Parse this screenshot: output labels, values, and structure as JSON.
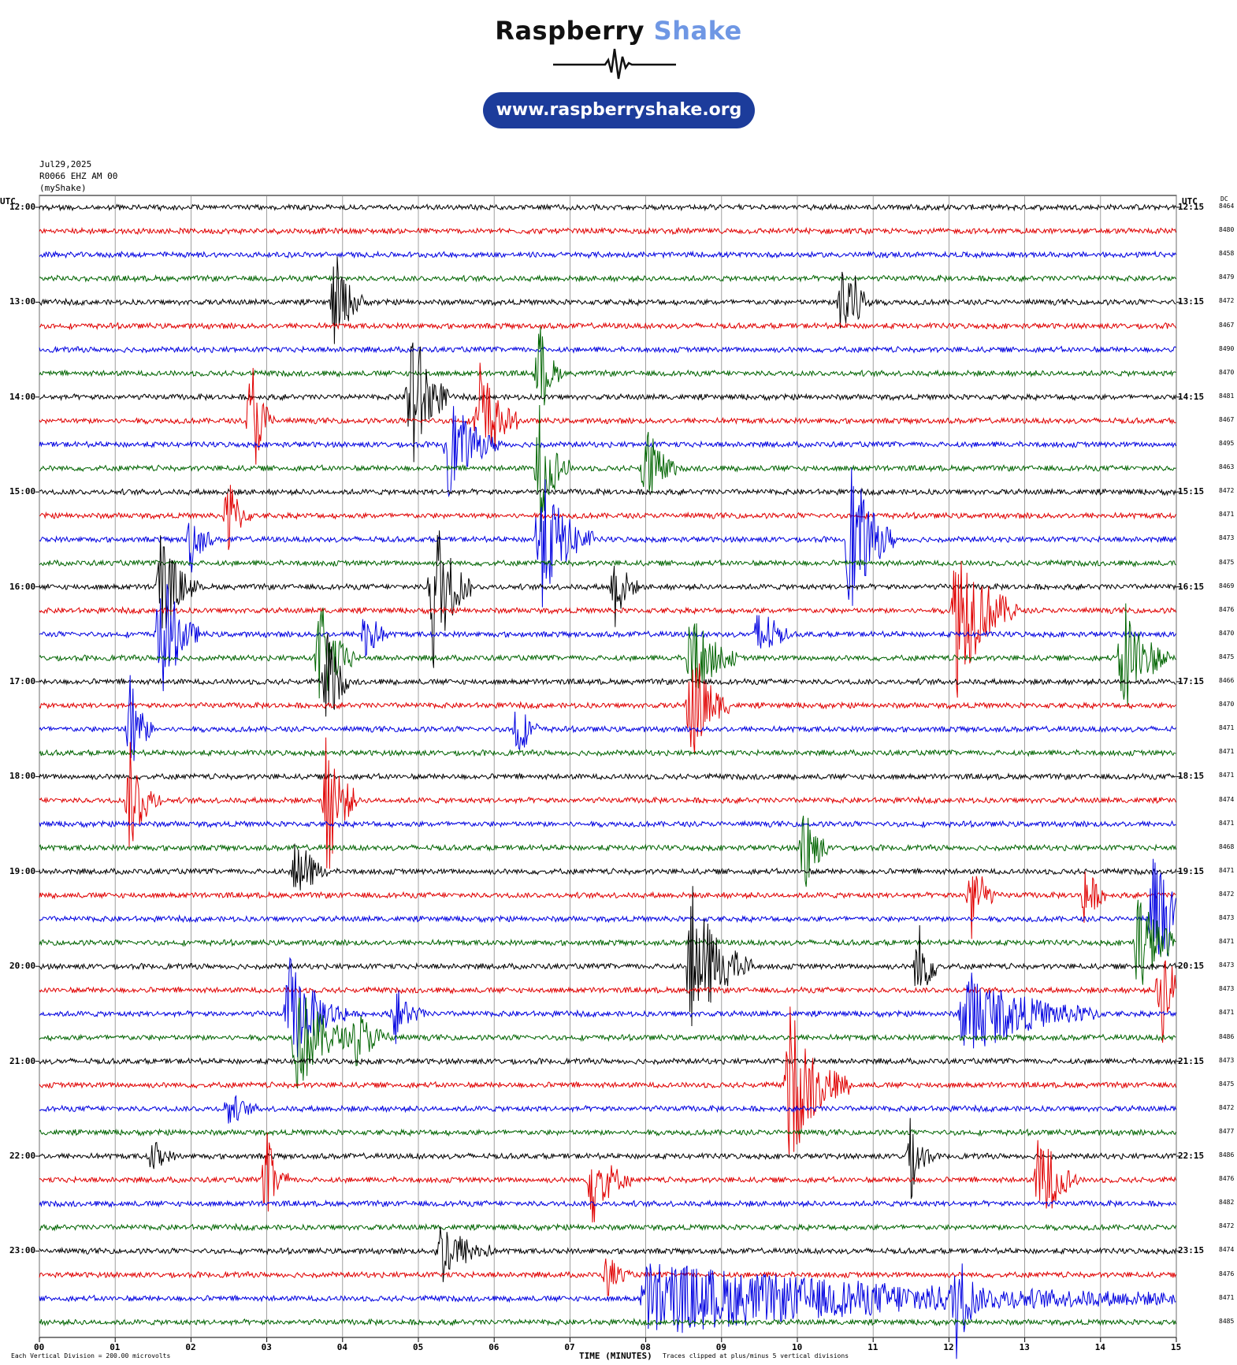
{
  "branding": {
    "brand_main": "Raspberry",
    "brand_accent": "Shake",
    "website": "www.raspberryshake.org",
    "accent_color": "#6f97e4",
    "pill_color": "#1c3c9b"
  },
  "header": {
    "date": "Jul29,2025",
    "station": "R0066 EHZ AM 00",
    "network": "(myShake)"
  },
  "chart_data": {
    "type": "line",
    "subtype": "helicorder",
    "left_axis_title": "UTC",
    "right_axis_title": "UTC",
    "dc_header": "DC",
    "xlabel": "TIME (MINUTES)",
    "xticks": [
      "00",
      "01",
      "02",
      "03",
      "04",
      "05",
      "06",
      "07",
      "08",
      "09",
      "10",
      "11",
      "12",
      "13",
      "14",
      "15"
    ],
    "xlim": [
      0,
      15
    ],
    "grid": true,
    "trace_colors": [
      "#000000",
      "#e00000",
      "#0000e0",
      "#006400"
    ],
    "hour_labels_left": [
      "12:00",
      "13:00",
      "14:00",
      "15:00",
      "16:00",
      "17:00",
      "18:00",
      "19:00",
      "20:00",
      "21:00",
      "22:00",
      "23:00"
    ],
    "hour_labels_right": [
      "12:15",
      "13:15",
      "14:15",
      "15:15",
      "16:15",
      "17:15",
      "18:15",
      "19:15",
      "20:15",
      "21:15",
      "22:15",
      "23:15"
    ],
    "dc_values": [
      "8464",
      "8480",
      "8458",
      "8479",
      "8472",
      "8467",
      "8490",
      "8470",
      "8481",
      "8467",
      "8495",
      "8463",
      "8472",
      "8471",
      "8473",
      "8475",
      "8469",
      "8476",
      "8470",
      "8475",
      "8466",
      "8470",
      "8471",
      "8471",
      "8471",
      "8474",
      "8471",
      "8468",
      "8471",
      "8472",
      "8473",
      "8471",
      "8473",
      "8473",
      "8471",
      "8486",
      "8473",
      "8475",
      "8472",
      "8477",
      "8486",
      "8476",
      "8482",
      "8472",
      "8474",
      "8476",
      "8471",
      "8485"
    ],
    "events": [
      {
        "line": 4,
        "minute": 3.9,
        "amp": 2.2,
        "dur": 0.4
      },
      {
        "line": 4,
        "minute": 10.6,
        "amp": 3.0,
        "dur": 0.4
      },
      {
        "line": 7,
        "minute": 6.6,
        "amp": 2.2,
        "dur": 0.3
      },
      {
        "line": 8,
        "minute": 4.9,
        "amp": 4.0,
        "dur": 0.5
      },
      {
        "line": 9,
        "minute": 2.8,
        "amp": 3.0,
        "dur": 0.3
      },
      {
        "line": 9,
        "minute": 5.8,
        "amp": 3.0,
        "dur": 0.5
      },
      {
        "line": 10,
        "minute": 5.4,
        "amp": 2.2,
        "dur": 0.7
      },
      {
        "line": 11,
        "minute": 6.6,
        "amp": 2.8,
        "dur": 0.4
      },
      {
        "line": 11,
        "minute": 8.0,
        "amp": 2.2,
        "dur": 0.4
      },
      {
        "line": 13,
        "minute": 2.5,
        "amp": 1.8,
        "dur": 0.3
      },
      {
        "line": 14,
        "minute": 2.0,
        "amp": 1.5,
        "dur": 0.3
      },
      {
        "line": 14,
        "minute": 6.6,
        "amp": 3.2,
        "dur": 0.7
      },
      {
        "line": 14,
        "minute": 10.7,
        "amp": 3.6,
        "dur": 0.6
      },
      {
        "line": 16,
        "minute": 1.6,
        "amp": 2.5,
        "dur": 0.5
      },
      {
        "line": 16,
        "minute": 5.2,
        "amp": 4.0,
        "dur": 0.5
      },
      {
        "line": 16,
        "minute": 7.6,
        "amp": 1.8,
        "dur": 0.3
      },
      {
        "line": 17,
        "minute": 12.1,
        "amp": 3.8,
        "dur": 0.8
      },
      {
        "line": 18,
        "minute": 1.6,
        "amp": 3.2,
        "dur": 0.5
      },
      {
        "line": 18,
        "minute": 4.3,
        "amp": 1.5,
        "dur": 0.3
      },
      {
        "line": 18,
        "minute": 9.5,
        "amp": 1.6,
        "dur": 0.4
      },
      {
        "line": 19,
        "minute": 3.7,
        "amp": 2.5,
        "dur": 0.5
      },
      {
        "line": 19,
        "minute": 8.6,
        "amp": 2.2,
        "dur": 0.6
      },
      {
        "line": 19,
        "minute": 14.3,
        "amp": 3.0,
        "dur": 0.6
      },
      {
        "line": 20,
        "minute": 3.8,
        "amp": 2.5,
        "dur": 0.3
      },
      {
        "line": 21,
        "minute": 8.6,
        "amp": 3.0,
        "dur": 0.5
      },
      {
        "line": 22,
        "minute": 1.2,
        "amp": 2.5,
        "dur": 0.3
      },
      {
        "line": 22,
        "minute": 6.3,
        "amp": 1.5,
        "dur": 0.3
      },
      {
        "line": 25,
        "minute": 1.2,
        "amp": 2.5,
        "dur": 0.4
      },
      {
        "line": 25,
        "minute": 3.8,
        "amp": 3.5,
        "dur": 0.4
      },
      {
        "line": 27,
        "minute": 10.1,
        "amp": 2.5,
        "dur": 0.3
      },
      {
        "line": 28,
        "minute": 3.4,
        "amp": 1.8,
        "dur": 0.4
      },
      {
        "line": 29,
        "minute": 12.3,
        "amp": 2.2,
        "dur": 0.3
      },
      {
        "line": 29,
        "minute": 13.8,
        "amp": 1.5,
        "dur": 0.3
      },
      {
        "line": 30,
        "minute": 14.7,
        "amp": 3.0,
        "dur": 0.6
      },
      {
        "line": 31,
        "minute": 14.5,
        "amp": 2.5,
        "dur": 0.6
      },
      {
        "line": 32,
        "minute": 8.6,
        "amp": 3.5,
        "dur": 0.8
      },
      {
        "line": 32,
        "minute": 11.6,
        "amp": 2.0,
        "dur": 0.3
      },
      {
        "line": 33,
        "minute": 14.8,
        "amp": 2.5,
        "dur": 0.4
      },
      {
        "line": 34,
        "minute": 3.3,
        "amp": 2.5,
        "dur": 0.8
      },
      {
        "line": 34,
        "minute": 4.7,
        "amp": 1.2,
        "dur": 0.4
      },
      {
        "line": 34,
        "minute": 12.2,
        "amp": 2.0,
        "dur": 1.8
      },
      {
        "line": 35,
        "minute": 3.4,
        "amp": 2.5,
        "dur": 0.8
      },
      {
        "line": 35,
        "minute": 4.2,
        "amp": 1.2,
        "dur": 0.5
      },
      {
        "line": 37,
        "minute": 9.9,
        "amp": 3.5,
        "dur": 0.8
      },
      {
        "line": 38,
        "minute": 2.5,
        "amp": 0.8,
        "dur": 0.4
      },
      {
        "line": 40,
        "minute": 1.5,
        "amp": 0.8,
        "dur": 0.3
      },
      {
        "line": 40,
        "minute": 11.5,
        "amp": 1.8,
        "dur": 0.3
      },
      {
        "line": 41,
        "minute": 3.0,
        "amp": 2.0,
        "dur": 0.3
      },
      {
        "line": 41,
        "minute": 7.3,
        "amp": 2.0,
        "dur": 0.5
      },
      {
        "line": 41,
        "minute": 13.2,
        "amp": 2.5,
        "dur": 0.5
      },
      {
        "line": 44,
        "minute": 5.3,
        "amp": 1.5,
        "dur": 0.7
      },
      {
        "line": 45,
        "minute": 7.5,
        "amp": 1.0,
        "dur": 0.3
      },
      {
        "line": 46,
        "minute": 8.0,
        "amp": 1.6,
        "dur": 7.6
      },
      {
        "line": 46,
        "minute": 12.1,
        "amp": 2.2,
        "dur": 0.3
      }
    ]
  },
  "footer": {
    "scale_note": "Each Vertical Division =  200.00 microvolts",
    "clip_note": "Traces clipped at plus/minus 5 vertical divisions"
  }
}
